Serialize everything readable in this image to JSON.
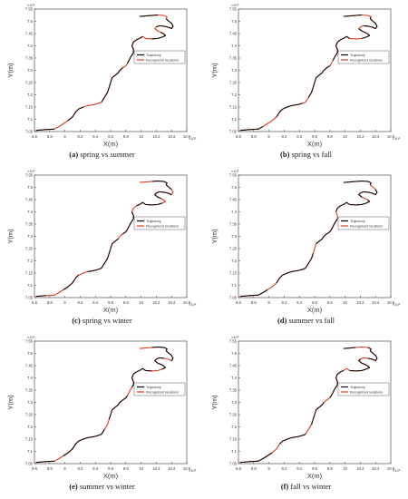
{
  "chart_data": [
    {
      "type": "line",
      "letter": "(a)",
      "caption": "spring vs summer",
      "xlabel": "X(m)",
      "ylabel": "Y(m)",
      "xlim": [
        8.6,
        10.6
      ],
      "ylim": [
        7.05,
        7.55
      ],
      "x_exponent": "×10⁵",
      "y_exponent": "×10⁶",
      "legend": {
        "entries": [
          "Trajectory",
          "Recognized locations"
        ],
        "position": "center-right"
      },
      "x_ticks": [
        "8.6",
        "8.8",
        "9",
        "9.2",
        "9.4",
        "9.6",
        "9.8",
        "10",
        "10.2",
        "10.4",
        "10.6"
      ],
      "y_ticks": [
        "7.05",
        "7.1",
        "7.15",
        "7.2",
        "7.25",
        "7.3",
        "7.35",
        "7.4",
        "7.45",
        "7.5",
        "7.55"
      ]
    },
    {
      "type": "line",
      "letter": "(b)",
      "caption": "spring vs fall",
      "xlabel": "X(m)",
      "ylabel": "Y(m)",
      "xlim": [
        8.6,
        10.6
      ],
      "ylim": [
        7.05,
        7.55
      ],
      "x_exponent": "×10⁵",
      "y_exponent": "×10⁶",
      "legend": {
        "entries": [
          "Trajectory",
          "Recognized locations"
        ],
        "position": "center-right"
      },
      "x_ticks": [
        "8.6",
        "8.8",
        "9",
        "9.2",
        "9.4",
        "9.6",
        "9.8",
        "10",
        "10.2",
        "10.4",
        "10.6"
      ],
      "y_ticks": [
        "7.05",
        "7.1",
        "7.15",
        "7.2",
        "7.25",
        "7.3",
        "7.35",
        "7.4",
        "7.45",
        "7.5",
        "7.55"
      ]
    },
    {
      "type": "line",
      "letter": "(c)",
      "caption": "spring vs winter",
      "xlabel": "X(m)",
      "ylabel": "Y(m)",
      "xlim": [
        8.6,
        10.6
      ],
      "ylim": [
        7.05,
        7.55
      ],
      "x_exponent": "×10⁵",
      "y_exponent": "×10⁶",
      "legend": {
        "entries": [
          "Trajectory",
          "Recognized locations"
        ],
        "position": "center-right"
      },
      "x_ticks": [
        "8.6",
        "8.8",
        "9",
        "9.2",
        "9.4",
        "9.6",
        "9.8",
        "10",
        "10.2",
        "10.4",
        "10.6"
      ],
      "y_ticks": [
        "7.05",
        "7.1",
        "7.15",
        "7.2",
        "7.25",
        "7.3",
        "7.35",
        "7.4",
        "7.45",
        "7.5",
        "7.55"
      ]
    },
    {
      "type": "line",
      "letter": "(d)",
      "caption": "summer vs fall",
      "xlabel": "X(m)",
      "ylabel": "Y(m)",
      "xlim": [
        8.6,
        10.6
      ],
      "ylim": [
        7.05,
        7.55
      ],
      "x_exponent": "×10⁵",
      "y_exponent": "×10⁶",
      "legend": {
        "entries": [
          "Trajectory",
          "Recognized locations"
        ],
        "position": "center-right"
      },
      "x_ticks": [
        "8.6",
        "8.8",
        "9",
        "9.2",
        "9.4",
        "9.6",
        "9.8",
        "10",
        "10.2",
        "10.4",
        "10.6"
      ],
      "y_ticks": [
        "7.05",
        "7.1",
        "7.15",
        "7.2",
        "7.25",
        "7.3",
        "7.35",
        "7.4",
        "7.45",
        "7.5",
        "7.55"
      ]
    },
    {
      "type": "line",
      "letter": "(e)",
      "caption": "summer vs winter",
      "xlabel": "X(m)",
      "ylabel": "Y(m)",
      "xlim": [
        8.6,
        10.6
      ],
      "ylim": [
        7.05,
        7.55
      ],
      "x_exponent": "×10⁵",
      "y_exponent": "×10⁶",
      "legend": {
        "entries": [
          "Trajectory",
          "Recognized locations"
        ],
        "position": "center-right"
      },
      "x_ticks": [
        "8.6",
        "8.8",
        "9",
        "9.2",
        "9.4",
        "9.6",
        "9.8",
        "10",
        "10.2",
        "10.4",
        "10.6"
      ],
      "y_ticks": [
        "7.05",
        "7.1",
        "7.15",
        "7.2",
        "7.25",
        "7.3",
        "7.35",
        "7.4",
        "7.45",
        "7.5",
        "7.55"
      ]
    },
    {
      "type": "line",
      "letter": "(f)",
      "caption": "fall vs winter",
      "xlabel": "X(m)",
      "ylabel": "Y(m)",
      "xlim": [
        8.6,
        10.6
      ],
      "ylim": [
        7.05,
        7.55
      ],
      "x_exponent": "×10⁵",
      "y_exponent": "×10⁶",
      "legend": {
        "entries": [
          "Trajectory",
          "Recognized locations"
        ],
        "position": "center-right"
      },
      "x_ticks": [
        "8.6",
        "8.8",
        "9",
        "9.2",
        "9.4",
        "9.6",
        "9.8",
        "10",
        "10.2",
        "10.4",
        "10.6"
      ],
      "y_ticks": [
        "7.05",
        "7.1",
        "7.15",
        "7.2",
        "7.25",
        "7.3",
        "7.35",
        "7.4",
        "7.45",
        "7.5",
        "7.55"
      ]
    }
  ],
  "trajectory": {
    "x": [
      8.62,
      8.75,
      8.86,
      8.92,
      8.98,
      9.04,
      9.1,
      9.14,
      9.18,
      9.24,
      9.3,
      9.38,
      9.44,
      9.48,
      9.52,
      9.56,
      9.58,
      9.6,
      9.62,
      9.66,
      9.7,
      9.72,
      9.76,
      9.8,
      9.82,
      9.84,
      9.86,
      9.88,
      9.9,
      9.9,
      9.88,
      9.9,
      9.94,
      9.98,
      10.02,
      10.06,
      10.14,
      10.22,
      10.28,
      10.32,
      10.3,
      10.26,
      10.22,
      10.18,
      10.2,
      10.24,
      10.3,
      10.36,
      10.4,
      10.42,
      10.4,
      10.36,
      10.33,
      10.34,
      10.3,
      10.22,
      10.14,
      10.06,
      9.98
    ],
    "y": [
      7.055,
      7.058,
      7.06,
      7.07,
      7.082,
      7.094,
      7.11,
      7.13,
      7.142,
      7.15,
      7.156,
      7.16,
      7.165,
      7.17,
      7.19,
      7.21,
      7.23,
      7.25,
      7.27,
      7.28,
      7.29,
      7.3,
      7.31,
      7.318,
      7.328,
      7.34,
      7.352,
      7.362,
      7.372,
      7.385,
      7.4,
      7.415,
      7.425,
      7.43,
      7.438,
      7.43,
      7.428,
      7.43,
      7.436,
      7.442,
      7.448,
      7.455,
      7.46,
      7.47,
      7.477,
      7.482,
      7.48,
      7.476,
      7.47,
      7.48,
      7.492,
      7.502,
      7.51,
      7.518,
      7.524,
      7.526,
      7.524,
      7.522,
      7.52
    ]
  },
  "recognized_segments": [
    [
      [
        0,
        2
      ],
      [
        5,
        9
      ],
      [
        13,
        22
      ],
      [
        24,
        34
      ],
      [
        36,
        41
      ],
      [
        44,
        52
      ],
      [
        55,
        58
      ]
    ],
    [
      [
        0,
        3
      ],
      [
        6,
        12
      ],
      [
        14,
        23
      ],
      [
        25,
        35
      ],
      [
        37,
        43
      ],
      [
        45,
        53
      ],
      [
        55,
        58
      ]
    ],
    [
      [
        0,
        1
      ],
      [
        4,
        8
      ],
      [
        10,
        20
      ],
      [
        22,
        30
      ],
      [
        32,
        38
      ],
      [
        41,
        48
      ],
      [
        50,
        56
      ]
    ],
    [
      [
        0,
        4
      ],
      [
        6,
        16
      ],
      [
        18,
        28
      ],
      [
        30,
        40
      ],
      [
        42,
        50
      ],
      [
        52,
        58
      ]
    ],
    [
      [
        0,
        2
      ],
      [
        4,
        14
      ],
      [
        16,
        24
      ],
      [
        27,
        36
      ],
      [
        38,
        46
      ],
      [
        48,
        56
      ]
    ],
    [
      [
        0,
        5
      ],
      [
        7,
        13
      ],
      [
        15,
        21
      ],
      [
        23,
        33
      ],
      [
        35,
        44
      ],
      [
        46,
        54
      ],
      [
        56,
        58
      ]
    ]
  ],
  "colors": {
    "trajectory": "#e03a1e",
    "recognized": "#000000",
    "axes": "#333333"
  }
}
